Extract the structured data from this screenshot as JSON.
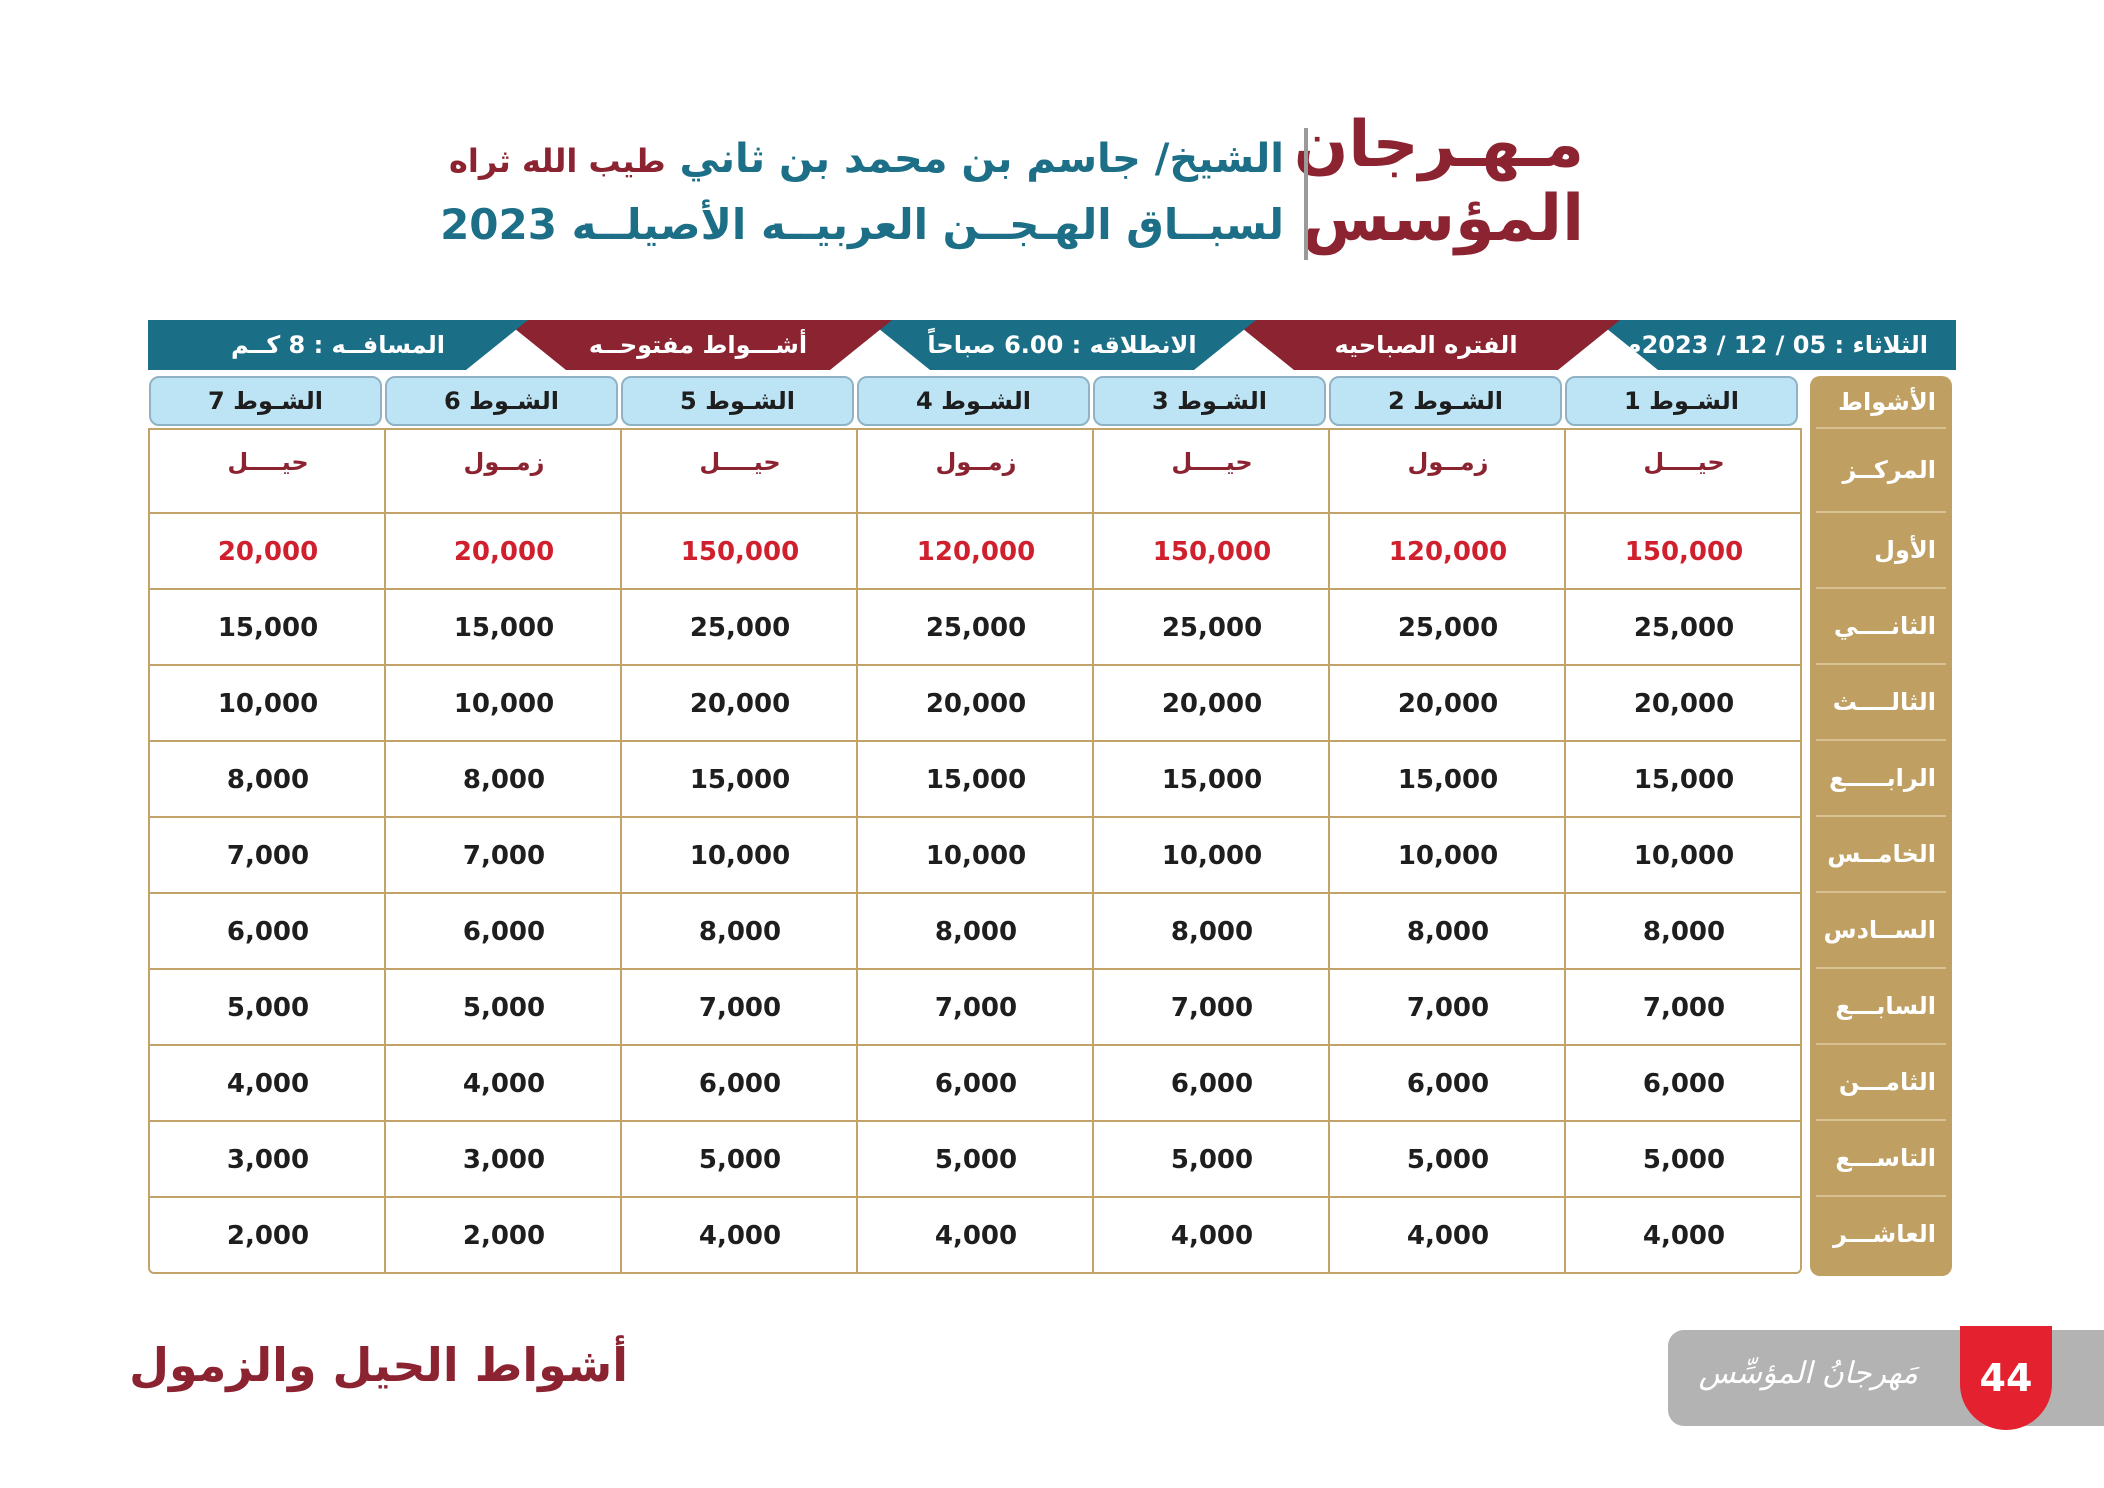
{
  "header": {
    "logo_line1": "مـهـرجان",
    "logo_line2": "المؤسس",
    "sheikh_name": "الشيخ/ جاسم بن محمد بن ثاني",
    "honorific": "طيب الله ثراه",
    "subtitle": "لسبــاق الهـجــن العربيــه الأصيلــه 2023"
  },
  "banner": {
    "date": "الثلاثاء : 05 / 12 / 2023م",
    "period": "الفتره الصباحيه",
    "start_time": "الانطلاقه :   6.00  صباحاً",
    "laps_type": "أشـــواط مفتوحــه",
    "distance": "المسافــه :  8  كــم"
  },
  "table": {
    "row_header": "الأشواط",
    "center_label": "المركــز",
    "columns": [
      "الشـوط 1",
      "الشـوط 2",
      "الشـوط 3",
      "الشـوط 4",
      "الشـوط 5",
      "الشـوط 6",
      "الشـوط 7"
    ],
    "centers": [
      "حيــــل",
      "زمــول",
      "حيــــل",
      "زمــول",
      "حيــــل",
      "زمــول",
      "حيــــل"
    ],
    "rows": [
      {
        "label": "الأول",
        "values": [
          "150,000",
          "120,000",
          "150,000",
          "120,000",
          "150,000",
          "20,000",
          "20,000"
        ]
      },
      {
        "label": "الثانــــي",
        "values": [
          "25,000",
          "25,000",
          "25,000",
          "25,000",
          "25,000",
          "15,000",
          "15,000"
        ]
      },
      {
        "label": "الثالــــث",
        "values": [
          "20,000",
          "20,000",
          "20,000",
          "20,000",
          "20,000",
          "10,000",
          "10,000"
        ]
      },
      {
        "label": "الرابـــــع",
        "values": [
          "15,000",
          "15,000",
          "15,000",
          "15,000",
          "15,000",
          "8,000",
          "8,000"
        ]
      },
      {
        "label": "الخامــس",
        "values": [
          "10,000",
          "10,000",
          "10,000",
          "10,000",
          "10,000",
          "7,000",
          "7,000"
        ]
      },
      {
        "label": "الســادس",
        "values": [
          "8,000",
          "8,000",
          "8,000",
          "8,000",
          "8,000",
          "6,000",
          "6,000"
        ]
      },
      {
        "label": "السابـــع",
        "values": [
          "7,000",
          "7,000",
          "7,000",
          "7,000",
          "7,000",
          "5,000",
          "5,000"
        ]
      },
      {
        "label": "الثامـــن",
        "values": [
          "6,000",
          "6,000",
          "6,000",
          "6,000",
          "6,000",
          "4,000",
          "4,000"
        ]
      },
      {
        "label": "التاســـع",
        "values": [
          "5,000",
          "5,000",
          "5,000",
          "5,000",
          "5,000",
          "3,000",
          "3,000"
        ]
      },
      {
        "label": "العاشـــر",
        "values": [
          "4,000",
          "4,000",
          "4,000",
          "4,000",
          "4,000",
          "2,000",
          "2,000"
        ]
      }
    ]
  },
  "footer": {
    "title": "أشواط الحيل والزمول",
    "logo_text": "مَهرجانُ المؤسِّس",
    "page_number": "44"
  },
  "colors": {
    "maroon": "#8b2331",
    "teal": "#1a6f87",
    "gold": "#c0a062",
    "light_blue": "#bde4f4",
    "red": "#d0202e"
  }
}
